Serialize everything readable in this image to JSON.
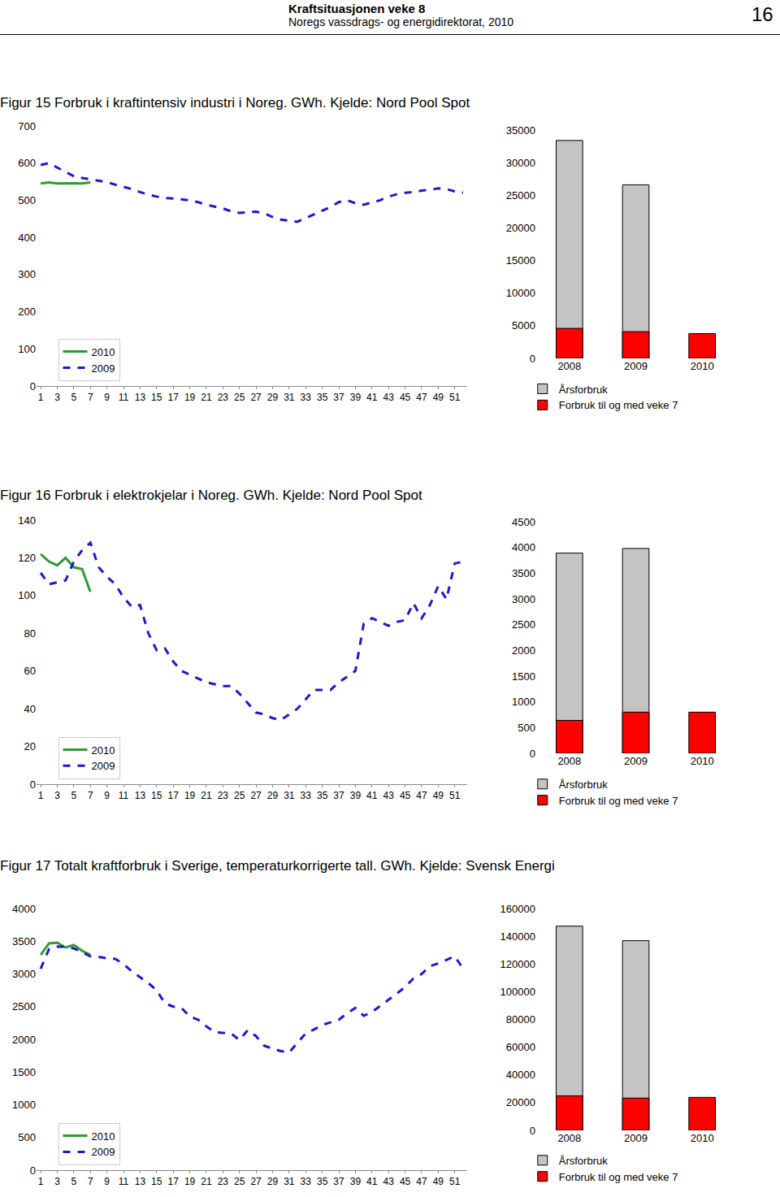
{
  "header": {
    "title": "Kraftsituasjonen veke 8",
    "subtitle": "Noregs vassdrags- og energidirektorat, 2010",
    "page": "16"
  },
  "chart_data": [
    {
      "type": "line",
      "title": "Figur 15 Forbruk i kraftintensiv industri i Noreg. GWh. Kjelde: Nord Pool Spot",
      "x": [
        1,
        2,
        3,
        4,
        5,
        6,
        7,
        8,
        9,
        10,
        11,
        12,
        13,
        14,
        15,
        16,
        17,
        18,
        19,
        20,
        21,
        22,
        23,
        24,
        25,
        26,
        27,
        28,
        29,
        30,
        31,
        32,
        33,
        34,
        35,
        36,
        37,
        38,
        39,
        40,
        41,
        42,
        43,
        44,
        45,
        46,
        47,
        48,
        49,
        50,
        51,
        52
      ],
      "xlim": [
        0.5,
        52.5
      ],
      "xticks": [
        1,
        3,
        5,
        7,
        9,
        11,
        13,
        15,
        17,
        19,
        21,
        23,
        25,
        27,
        29,
        31,
        33,
        35,
        37,
        39,
        41,
        43,
        45,
        47,
        49,
        51
      ],
      "ylim": [
        0,
        700
      ],
      "yticks": [
        0,
        100,
        200,
        300,
        400,
        500,
        600,
        700
      ],
      "grid": false,
      "legend": "bottom left",
      "series": [
        {
          "name": "2010",
          "color": "#339933",
          "line_style": "solid",
          "values": [
            545,
            548,
            545,
            546,
            546,
            545,
            548,
            null,
            null,
            null,
            null,
            null,
            null,
            null,
            null,
            null,
            null,
            null,
            null,
            null,
            null,
            null,
            null,
            null,
            null,
            null,
            null,
            null,
            null,
            null,
            null,
            null,
            null,
            null,
            null,
            null,
            null,
            null,
            null,
            null,
            null,
            null,
            null,
            null,
            null,
            null,
            null,
            null,
            null,
            null,
            null,
            null
          ]
        },
        {
          "name": "2009",
          "color": "#1a1acc",
          "line_style": "dashed",
          "values": [
            595,
            600,
            588,
            577,
            565,
            560,
            556,
            553,
            549,
            542,
            536,
            530,
            522,
            515,
            510,
            506,
            505,
            503,
            500,
            495,
            488,
            483,
            478,
            470,
            466,
            468,
            469,
            465,
            455,
            448,
            445,
            442,
            452,
            462,
            472,
            482,
            495,
            500,
            492,
            488,
            494,
            500,
            510,
            516,
            520,
            522,
            526,
            528,
            532,
            530,
            524,
            520
          ]
        }
      ]
    },
    {
      "type": "bar",
      "categories": [
        "2008",
        "2009",
        "2010"
      ],
      "ylim": [
        0,
        35000
      ],
      "yticks": [
        0,
        5000,
        10000,
        15000,
        20000,
        25000,
        30000,
        35000
      ],
      "grid": false,
      "legend": "bottom",
      "stacked": false,
      "series": [
        {
          "name": "Årsforbruk",
          "color": "#c4c4c4",
          "values": [
            33400,
            26600,
            null
          ]
        },
        {
          "name": "Forbruk til og med veke 7",
          "color": "#ff0000",
          "values": [
            4600,
            4100,
            3800
          ]
        }
      ]
    },
    {
      "type": "line",
      "title": "Figur 16 Forbruk i elektrokjelar i Noreg. GWh. Kjelde: Nord Pool Spot",
      "x": [
        1,
        2,
        3,
        4,
        5,
        6,
        7,
        8,
        9,
        10,
        11,
        12,
        13,
        14,
        15,
        16,
        17,
        18,
        19,
        20,
        21,
        22,
        23,
        24,
        25,
        26,
        27,
        28,
        29,
        30,
        31,
        32,
        33,
        34,
        35,
        36,
        37,
        38,
        39,
        40,
        41,
        42,
        43,
        44,
        45,
        46,
        47,
        48,
        49,
        50,
        51,
        52
      ],
      "xlim": [
        0.5,
        52.5
      ],
      "xticks": [
        1,
        3,
        5,
        7,
        9,
        11,
        13,
        15,
        17,
        19,
        21,
        23,
        25,
        27,
        29,
        31,
        33,
        35,
        37,
        39,
        41,
        43,
        45,
        47,
        49,
        51
      ],
      "ylim": [
        0,
        140
      ],
      "yticks": [
        0,
        20,
        40,
        60,
        80,
        100,
        120,
        140
      ],
      "grid": false,
      "legend": "bottom left",
      "series": [
        {
          "name": "2010",
          "color": "#339933",
          "line_style": "solid",
          "values": [
            122,
            118,
            116,
            120,
            115,
            114,
            102,
            null,
            null,
            null,
            null,
            null,
            null,
            null,
            null,
            null,
            null,
            null,
            null,
            null,
            null,
            null,
            null,
            null,
            null,
            null,
            null,
            null,
            null,
            null,
            null,
            null,
            null,
            null,
            null,
            null,
            null,
            null,
            null,
            null,
            null,
            null,
            null,
            null,
            null,
            null,
            null,
            null,
            null,
            null,
            null,
            null
          ]
        },
        {
          "name": "2009",
          "color": "#1a1acc",
          "line_style": "dashed",
          "values": [
            112,
            106,
            107,
            108,
            118,
            124,
            128,
            115,
            110,
            106,
            99,
            94,
            95,
            80,
            71,
            72,
            65,
            60,
            58,
            56,
            54,
            53,
            52,
            52,
            48,
            43,
            38,
            37,
            35,
            34,
            37,
            40,
            45,
            50,
            50,
            50,
            54,
            57,
            60,
            85,
            88,
            86,
            84,
            86,
            87,
            96,
            88,
            95,
            105,
            98,
            117,
            118
          ]
        }
      ]
    },
    {
      "type": "bar",
      "categories": [
        "2008",
        "2009",
        "2010"
      ],
      "ylim": [
        0,
        4500
      ],
      "yticks": [
        0,
        500,
        1000,
        1500,
        2000,
        2500,
        3000,
        3500,
        4000,
        4500
      ],
      "grid": false,
      "legend": "bottom",
      "stacked": false,
      "series": [
        {
          "name": "Årsforbruk",
          "color": "#c4c4c4",
          "values": [
            3890,
            3980,
            null
          ]
        },
        {
          "name": "Forbruk til og med veke 7",
          "color": "#ff0000",
          "values": [
            640,
            800,
            800
          ]
        }
      ]
    },
    {
      "type": "line",
      "title": "Figur 17 Totalt kraftforbruk i Sverige, temperaturkorrigerte tall. GWh. Kjelde: Svensk Energi",
      "x": [
        1,
        2,
        3,
        4,
        5,
        6,
        7,
        8,
        9,
        10,
        11,
        12,
        13,
        14,
        15,
        16,
        17,
        18,
        19,
        20,
        21,
        22,
        23,
        24,
        25,
        26,
        27,
        28,
        29,
        30,
        31,
        32,
        33,
        34,
        35,
        36,
        37,
        38,
        39,
        40,
        41,
        42,
        43,
        44,
        45,
        46,
        47,
        48,
        49,
        50,
        51,
        52
      ],
      "xlim": [
        0.5,
        52.5
      ],
      "xticks": [
        1,
        3,
        5,
        7,
        9,
        11,
        13,
        15,
        17,
        19,
        21,
        23,
        25,
        27,
        29,
        31,
        33,
        35,
        37,
        39,
        41,
        43,
        45,
        47,
        49,
        51
      ],
      "ylim": [
        0,
        4000
      ],
      "yticks": [
        0,
        500,
        1000,
        1500,
        2000,
        2500,
        3000,
        3500,
        4000
      ],
      "grid": false,
      "legend": "bottom left",
      "series": [
        {
          "name": "2010",
          "color": "#339933",
          "line_style": "solid",
          "values": [
            3290,
            3466,
            3478,
            3404,
            3441,
            3354,
            3290,
            null,
            null,
            null,
            null,
            null,
            null,
            null,
            null,
            null,
            null,
            null,
            null,
            null,
            null,
            null,
            null,
            null,
            null,
            null,
            null,
            null,
            null,
            null,
            null,
            null,
            null,
            null,
            null,
            null,
            null,
            null,
            null,
            null,
            null,
            null,
            null,
            null,
            null,
            null,
            null,
            null,
            null,
            null,
            null,
            null
          ]
        },
        {
          "name": "2009",
          "color": "#1a1acc",
          "line_style": "dashed",
          "values": [
            3080,
            3380,
            3415,
            3415,
            3390,
            3330,
            3270,
            3260,
            3240,
            3230,
            3150,
            3040,
            2950,
            2860,
            2750,
            2550,
            2500,
            2480,
            2350,
            2300,
            2200,
            2110,
            2100,
            2090,
            1990,
            2140,
            2050,
            1900,
            1860,
            1820,
            1800,
            1950,
            2090,
            2150,
            2220,
            2260,
            2300,
            2400,
            2480,
            2360,
            2420,
            2510,
            2600,
            2700,
            2800,
            2930,
            3000,
            3120,
            3160,
            3220,
            3270,
            3080
          ]
        }
      ]
    },
    {
      "type": "bar",
      "categories": [
        "2008",
        "2009",
        "2010"
      ],
      "ylim": [
        0,
        160000
      ],
      "yticks": [
        0,
        20000,
        40000,
        60000,
        80000,
        100000,
        120000,
        140000,
        160000
      ],
      "grid": false,
      "legend": "bottom",
      "stacked": false,
      "series": [
        {
          "name": "Årsforbruk",
          "color": "#c4c4c4",
          "values": [
            147300,
            136800,
            null
          ]
        },
        {
          "name": "Forbruk til og med veke 7",
          "color": "#ff0000",
          "values": [
            24900,
            23300,
            23800
          ]
        }
      ]
    }
  ]
}
